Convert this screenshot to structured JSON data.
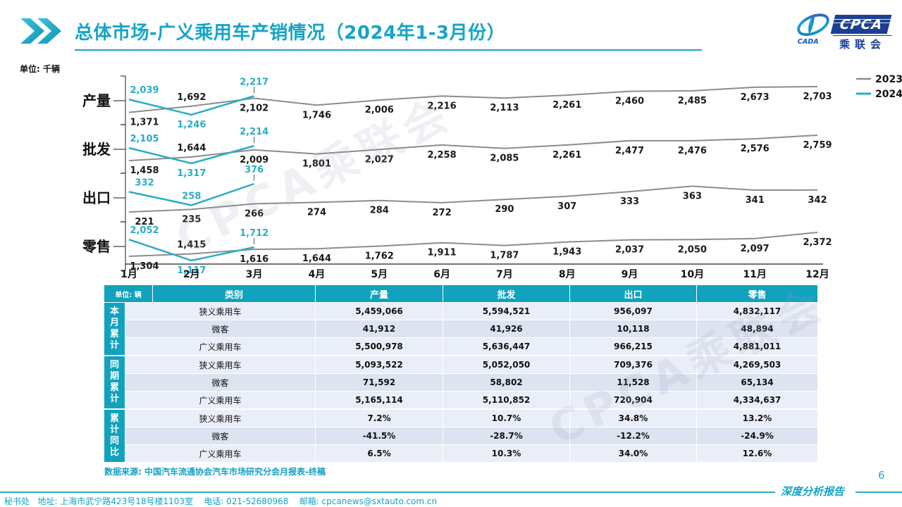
{
  "header": {
    "title": "总体市场-广义乘用车产销情况（2024年1-3月份）",
    "logo": {
      "cpca_text": "CPCA",
      "sub_text": "乘联会",
      "cada_text": "CADA"
    }
  },
  "chart_data": {
    "type": "line",
    "unit_label": "单位: 千辆",
    "categories": [
      "1月",
      "2月",
      "3月",
      "4月",
      "5月",
      "6月",
      "7月",
      "8月",
      "9月",
      "10月",
      "11月",
      "12月"
    ],
    "legend": [
      {
        "name": "2023",
        "color": "#8c8c8c"
      },
      {
        "name": "2024",
        "color": "#2babc7"
      }
    ],
    "rows": [
      {
        "label": "产量",
        "s2023": [
          1371,
          1692,
          2102,
          1746,
          2006,
          2216,
          2113,
          2261,
          2460,
          2485,
          2673,
          2703
        ],
        "s2024": [
          2039,
          1246,
          2217
        ]
      },
      {
        "label": "批发",
        "s2023": [
          1458,
          1644,
          2009,
          1801,
          2027,
          2258,
          2085,
          2261,
          2477,
          2476,
          2576,
          2759
        ],
        "s2024": [
          2105,
          1317,
          2214
        ]
      },
      {
        "label": "出口",
        "s2023": [
          221,
          235,
          266,
          274,
          284,
          272,
          290,
          307,
          333,
          363,
          341,
          342
        ],
        "s2024": [
          332,
          258,
          376
        ]
      },
      {
        "label": "零售",
        "s2023": [
          1304,
          1415,
          1616,
          1644,
          1762,
          1911,
          1787,
          1943,
          2037,
          2050,
          2097,
          2372
        ],
        "s2024": [
          2052,
          1117,
          1712
        ]
      }
    ]
  },
  "table": {
    "unit_header": "单位: 辆",
    "columns": [
      "类别",
      "产量",
      "批发",
      "出口",
      "零售"
    ],
    "groups": [
      {
        "label": "本月累计",
        "rows": [
          [
            "狭义乘用车",
            "5,459,066",
            "5,594,521",
            "956,097",
            "4,832,117"
          ],
          [
            "微客",
            "41,912",
            "41,926",
            "10,118",
            "48,894"
          ],
          [
            "广义乘用车",
            "5,500,978",
            "5,636,447",
            "966,215",
            "4,881,011"
          ]
        ]
      },
      {
        "label": "同期累计",
        "rows": [
          [
            "狭义乘用车",
            "5,093,522",
            "5,052,050",
            "709,376",
            "4,269,503"
          ],
          [
            "微客",
            "71,592",
            "58,802",
            "11,528",
            "65,134"
          ],
          [
            "广义乘用车",
            "5,165,114",
            "5,110,852",
            "720,904",
            "4,334,637"
          ]
        ]
      },
      {
        "label": "累计同比",
        "rows": [
          [
            "狭义乘用车",
            "7.2%",
            "10.7%",
            "34.8%",
            "13.2%"
          ],
          [
            "微客",
            "-41.5%",
            "-28.7%",
            "-12.2%",
            "-24.9%"
          ],
          [
            "广义乘用车",
            "6.5%",
            "10.3%",
            "34.0%",
            "12.6%"
          ]
        ]
      }
    ]
  },
  "footer": {
    "source": "数据来源: 中国汽车流通协会汽车市场研究分会月报表-终稿",
    "page_number": "6",
    "report_label": "深度分析报告",
    "secretariat": "秘书处   地址: 上海市武宁路423号18号楼1103室    电话: 021-52680968    邮箱: cpcanews@sxtauto.com.cn"
  },
  "watermark": "CPCA乘联会"
}
